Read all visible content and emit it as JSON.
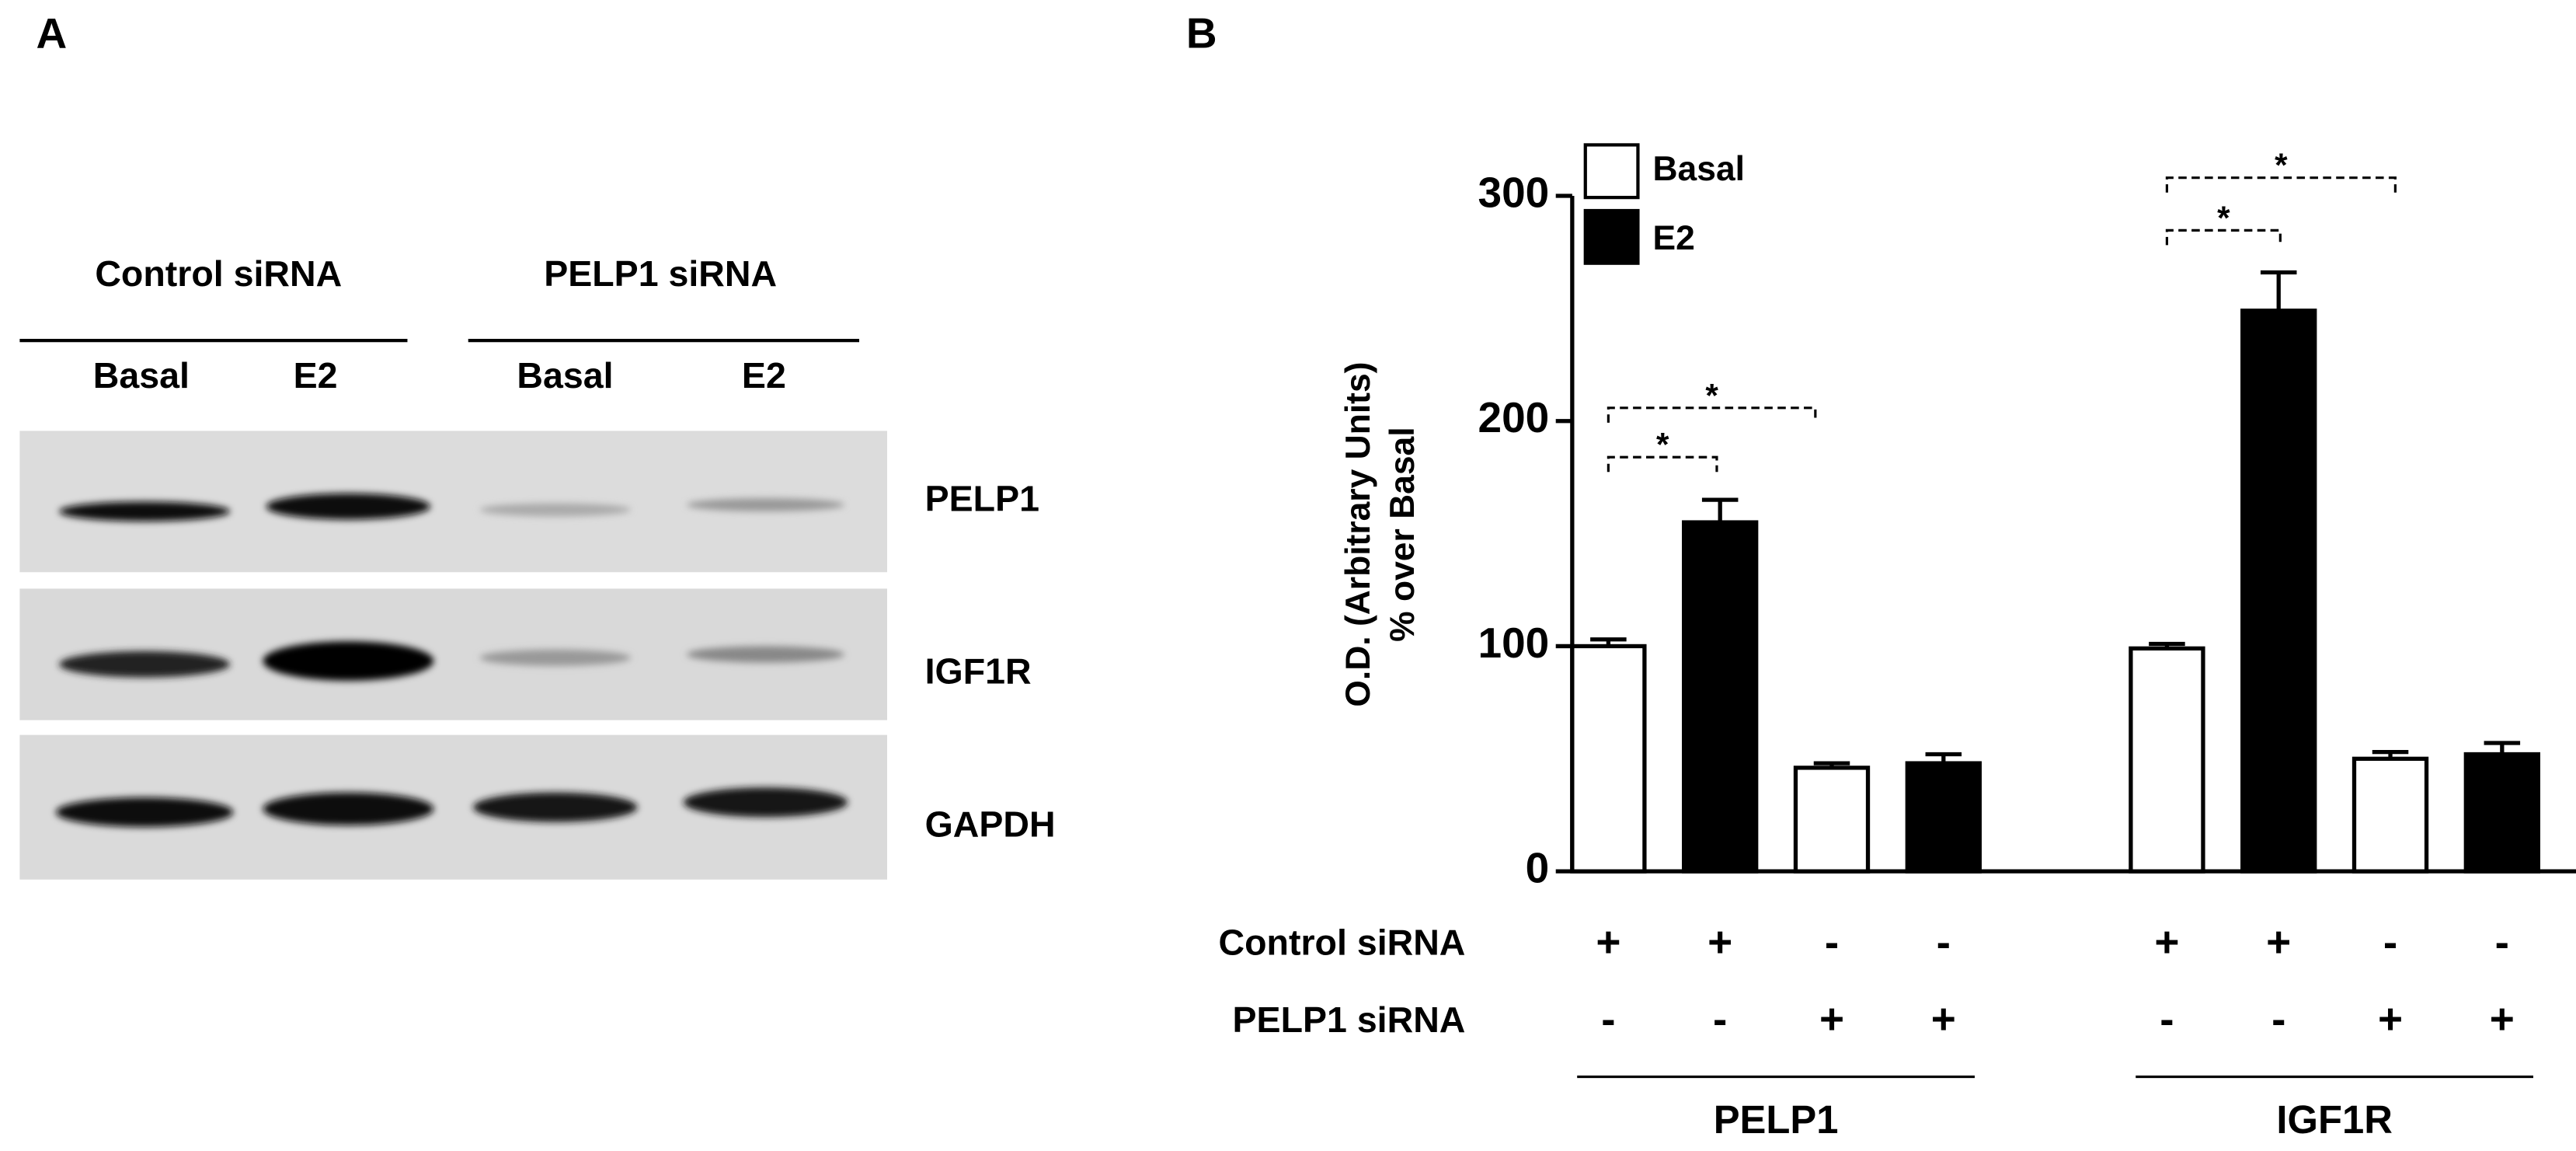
{
  "panel_labels": [
    "A",
    "B"
  ],
  "blot": {
    "groups": [
      "Control siRNA",
      "PELP1 siRNA"
    ],
    "lanes": [
      "Basal",
      "E2",
      "Basal",
      "E2"
    ],
    "rows": [
      "PELP1",
      "IGF1R",
      "GAPDH"
    ]
  },
  "chart_data": {
    "type": "bar",
    "ylabel": [
      "O.D. (Arbitrary Units)",
      "% over Basal"
    ],
    "ylim": [
      0,
      300
    ],
    "yticks": [
      0,
      100,
      200,
      300
    ],
    "groups": [
      "PELP1",
      "IGF1R"
    ],
    "series": [
      {
        "name": "Basal",
        "color": "#ffffff",
        "values": [
          100,
          46,
          99,
          50
        ],
        "errors": [
          3,
          2,
          2,
          3
        ]
      },
      {
        "name": "E2",
        "color": "#000000",
        "values": [
          155,
          48,
          249,
          52
        ],
        "errors": [
          10,
          4,
          17,
          5
        ]
      }
    ],
    "condition_rows": [
      {
        "label": "Control siRNA",
        "marks": [
          "+",
          "+",
          "-",
          "-",
          "+",
          "+",
          "-",
          "-"
        ]
      },
      {
        "label": "PELP1 siRNA",
        "marks": [
          "-",
          "-",
          "+",
          "+",
          "-",
          "-",
          "+",
          "+"
        ]
      }
    ],
    "annotations": [
      "*",
      "*",
      "*",
      "*"
    ]
  }
}
